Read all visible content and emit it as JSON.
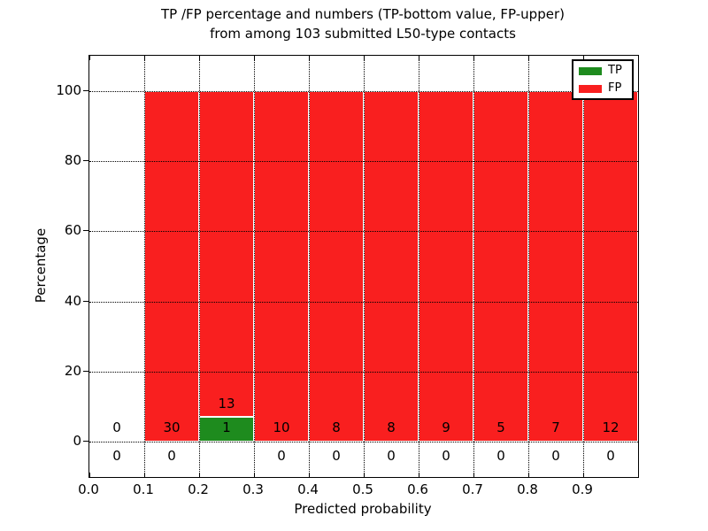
{
  "title": {
    "line1": "TP /FP percentage and numbers (TP-bottom value, FP-upper)",
    "line2": "from among 103 submitted L50-type contacts"
  },
  "axes": {
    "xlabel": "Predicted probability",
    "ylabel": "Percentage",
    "x_tick_labels": [
      "0.0",
      "0.1",
      "0.2",
      "0.3",
      "0.4",
      "0.5",
      "0.6",
      "0.7",
      "0.8",
      "0.9"
    ],
    "x_tick_values": [
      0.0,
      0.1,
      0.2,
      0.3,
      0.4,
      0.5,
      0.6,
      0.7,
      0.8,
      0.9
    ],
    "y_tick_labels": [
      "0",
      "20",
      "40",
      "60",
      "80",
      "100"
    ],
    "y_tick_values": [
      0,
      20,
      40,
      60,
      80,
      100
    ],
    "grid_style": "dotted"
  },
  "legend": {
    "items": [
      {
        "label": "TP",
        "color": "#1e8b1e"
      },
      {
        "label": "FP",
        "color": "#f91f1f"
      }
    ]
  },
  "colors": {
    "tp": "#1e8b1e",
    "fp": "#f91f1f",
    "grid": "#000000",
    "background": "#ffffff"
  },
  "chart_data": {
    "type": "bar",
    "stacked": true,
    "unit": "percent",
    "title": "TP /FP percentage and numbers (TP-bottom value, FP-upper) from among 103 submitted L50-type contacts",
    "xlabel": "Predicted probability",
    "ylabel": "Percentage",
    "xlim": [
      0.0,
      1.0
    ],
    "ylim": [
      -10,
      110
    ],
    "total_contacts": 103,
    "bin_edges": [
      0.0,
      0.1,
      0.2,
      0.3,
      0.4,
      0.5,
      0.6,
      0.7,
      0.8,
      0.9,
      1.0
    ],
    "series": [
      {
        "name": "TP",
        "color": "#1e8b1e",
        "counts": [
          0,
          0,
          1,
          0,
          0,
          0,
          0,
          0,
          0,
          0
        ],
        "percent": [
          0,
          0,
          7.1,
          0,
          0,
          0,
          0,
          0,
          0,
          0
        ]
      },
      {
        "name": "FP",
        "color": "#f91f1f",
        "counts": [
          0,
          30,
          13,
          10,
          8,
          8,
          9,
          5,
          7,
          12
        ],
        "percent": [
          0,
          100,
          92.9,
          100,
          100,
          100,
          100,
          100,
          100,
          100
        ]
      }
    ],
    "annotations": {
      "upper_row": [
        "0",
        "30",
        "1",
        "10",
        "8",
        "8",
        "9",
        "5",
        "7",
        "12"
      ],
      "bottom_row": [
        "0",
        "0",
        "",
        "0",
        "0",
        "0",
        "0",
        "0",
        "0",
        "0"
      ],
      "above_bar": {
        "bin_index": 2,
        "text": "13"
      }
    }
  }
}
